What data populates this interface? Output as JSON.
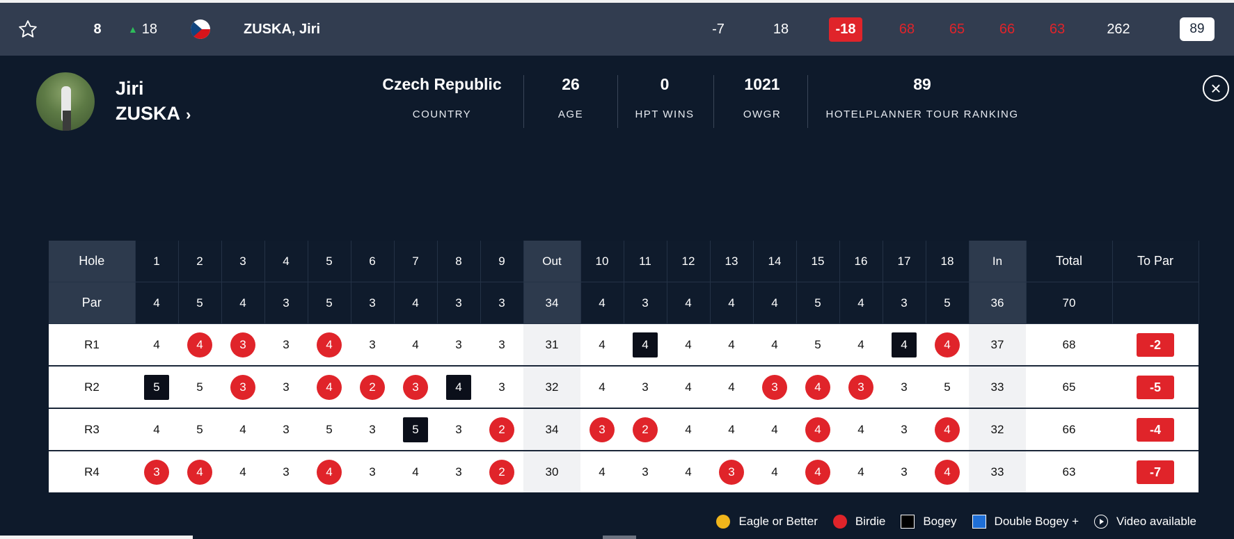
{
  "top_row": {
    "position": "8",
    "movement": "18",
    "movement_dir": "up",
    "country_flag": "czech-flag",
    "player": "ZUSKA, Jiri",
    "today": "-7",
    "thru": "18",
    "to_par": "-18",
    "rounds": [
      "68",
      "65",
      "66",
      "63"
    ],
    "total": "262",
    "ranking": "89"
  },
  "profile": {
    "first_name": "Jiri",
    "last_name": "ZUSKA",
    "stats": {
      "country": {
        "value": "Czech Republic",
        "label": "COUNTRY"
      },
      "age": {
        "value": "26",
        "label": "AGE"
      },
      "wins": {
        "value": "0",
        "label": "HPT WINS"
      },
      "owgr": {
        "value": "1021",
        "label": "OWGR"
      },
      "ranking": {
        "value": "89",
        "label": "HOTELPLANNER TOUR RANKING"
      }
    }
  },
  "scorecard": {
    "hole_label": "Hole",
    "par_label": "Par",
    "holes": [
      "1",
      "2",
      "3",
      "4",
      "5",
      "6",
      "7",
      "8",
      "9",
      "Out",
      "10",
      "11",
      "12",
      "13",
      "14",
      "15",
      "16",
      "17",
      "18",
      "In",
      "Total",
      "To Par"
    ],
    "par": [
      "4",
      "5",
      "4",
      "3",
      "5",
      "3",
      "4",
      "3",
      "3",
      "34",
      "4",
      "3",
      "4",
      "4",
      "4",
      "5",
      "4",
      "3",
      "5",
      "36",
      "70",
      ""
    ],
    "rounds": [
      {
        "label": "R1",
        "scores": [
          "4",
          "4",
          "3",
          "3",
          "4",
          "3",
          "4",
          "3",
          "3",
          "31",
          "4",
          "4",
          "4",
          "4",
          "4",
          "5",
          "4",
          "4",
          "4",
          "37",
          "68"
        ],
        "to_par": "-2",
        "types": [
          "",
          "birdie",
          "birdie",
          "",
          "birdie",
          "",
          "",
          "",
          "",
          "",
          "",
          "bogey",
          "",
          "",
          "",
          "",
          "",
          "bogey",
          "birdie",
          "",
          ""
        ]
      },
      {
        "label": "R2",
        "scores": [
          "5",
          "5",
          "3",
          "3",
          "4",
          "2",
          "3",
          "4",
          "3",
          "32",
          "4",
          "3",
          "4",
          "4",
          "3",
          "4",
          "3",
          "3",
          "5",
          "33",
          "65"
        ],
        "to_par": "-5",
        "types": [
          "bogey",
          "",
          "birdie",
          "",
          "birdie",
          "birdie",
          "birdie",
          "bogey",
          "",
          "",
          "",
          "",
          "",
          "",
          "birdie",
          "birdie",
          "birdie",
          "",
          "",
          "",
          ""
        ]
      },
      {
        "label": "R3",
        "scores": [
          "4",
          "5",
          "4",
          "3",
          "5",
          "3",
          "5",
          "3",
          "2",
          "34",
          "3",
          "2",
          "4",
          "4",
          "4",
          "4",
          "4",
          "3",
          "4",
          "32",
          "66"
        ],
        "to_par": "-4",
        "types": [
          "",
          "",
          "",
          "",
          "",
          "",
          "bogey",
          "",
          "birdie",
          "",
          "birdie",
          "birdie",
          "",
          "",
          "",
          "birdie",
          "",
          "",
          "birdie",
          "",
          ""
        ]
      },
      {
        "label": "R4",
        "scores": [
          "3",
          "4",
          "4",
          "3",
          "4",
          "3",
          "4",
          "3",
          "2",
          "30",
          "4",
          "3",
          "4",
          "3",
          "4",
          "4",
          "4",
          "3",
          "4",
          "33",
          "63"
        ],
        "to_par": "-7",
        "types": [
          "birdie",
          "birdie",
          "",
          "",
          "birdie",
          "",
          "",
          "",
          "birdie",
          "",
          "",
          "",
          "",
          "birdie",
          "",
          "birdie",
          "",
          "",
          "birdie",
          "",
          ""
        ]
      }
    ]
  },
  "legend": [
    {
      "key": "eagle",
      "label": "Eagle or Better"
    },
    {
      "key": "birdie",
      "label": "Birdie"
    },
    {
      "key": "bogey",
      "label": "Bogey"
    },
    {
      "key": "dbl",
      "label": "Double Bogey +"
    },
    {
      "key": "video",
      "label": "Video available"
    }
  ],
  "colors": {
    "background": "#0e1a2b",
    "top_row": "#323d50",
    "red": "#e0242a",
    "bogey": "#0b0f1a",
    "eagle": "#f0b51b",
    "double_bogey": "#1f6fd6",
    "movement_up": "#2dbd5a"
  }
}
